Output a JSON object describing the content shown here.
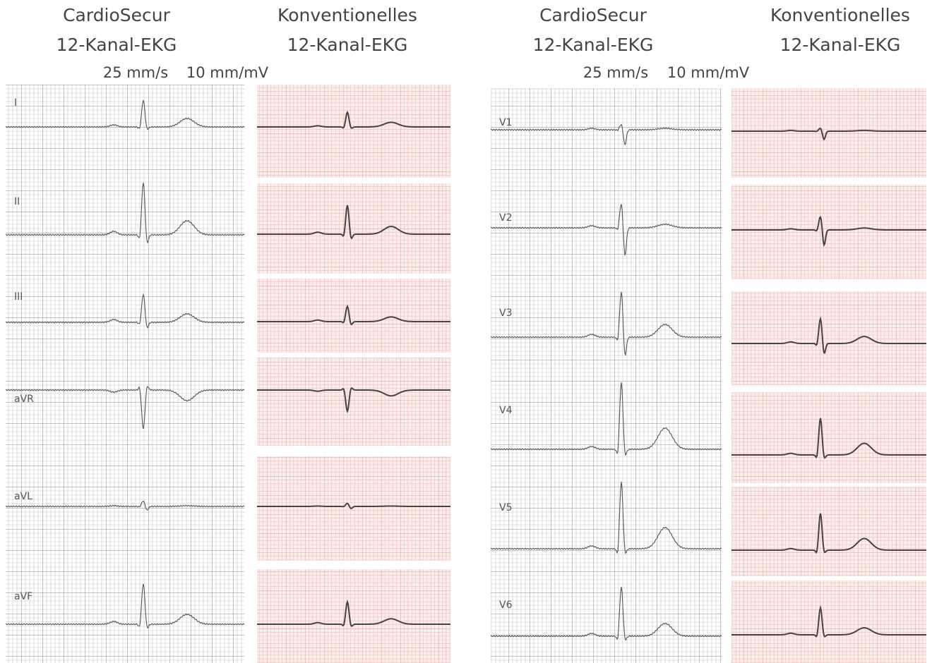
{
  "panels": [
    {
      "device_title": [
        "CardioSecur",
        "12-Kanal-EKG"
      ],
      "reference_title": [
        "Konventionelles",
        "12-Kanal-EKG"
      ],
      "speed": "25 mm/s",
      "gain": "10 mm/mV",
      "leads": [
        "I",
        "II",
        "III",
        "aVR",
        "aVL",
        "aVF"
      ]
    },
    {
      "device_title": [
        "CardioSecur",
        "12-Kanal-EKG"
      ],
      "reference_title": [
        "Konventionelles",
        "12-Kanal-EKG"
      ],
      "speed": "25 mm/s",
      "gain": "10 mm/mV",
      "leads": [
        "V1",
        "V2",
        "V3",
        "V4",
        "V5",
        "V6"
      ]
    }
  ]
}
